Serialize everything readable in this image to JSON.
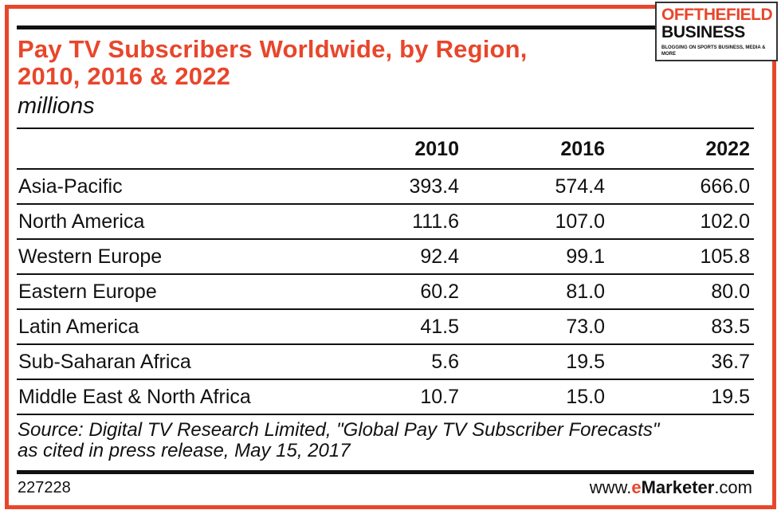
{
  "logo": {
    "line1": "OFFTHEFIELD",
    "line2": "BUSINESS",
    "tagline": "BLOGGING ON SPORTS BUSINESS, MEDIA & MORE"
  },
  "chart_data": {
    "type": "table",
    "title": "Pay TV Subscribers Worldwide, by Region, 2010, 2016 & 2022",
    "title_line1": "Pay TV Subscribers Worldwide, by Region,",
    "title_line2": "2010, 2016 & 2022",
    "subtitle": "millions",
    "columns": [
      "",
      "2010",
      "2016",
      "2022"
    ],
    "rows": [
      [
        "Asia-Pacific",
        "393.4",
        "574.4",
        "666.0"
      ],
      [
        "North America",
        "111.6",
        "107.0",
        "102.0"
      ],
      [
        "Western Europe",
        "92.4",
        "99.1",
        "105.8"
      ],
      [
        "Eastern Europe",
        "60.2",
        "81.0",
        "80.0"
      ],
      [
        "Latin America",
        "41.5",
        "73.0",
        "83.5"
      ],
      [
        "Sub-Saharan Africa",
        "5.6",
        "19.5",
        "36.7"
      ],
      [
        "Middle East & North Africa",
        "10.7",
        "15.0",
        "19.5"
      ]
    ],
    "source_line1": "Source: Digital TV Research Limited, \"Global Pay TV Subscriber Forecasts\"",
    "source_line2": "as cited in press release, May 15, 2017"
  },
  "footer": {
    "chart_id": "227228",
    "brand_prefix": "www.",
    "brand_e": "e",
    "brand_main": "Marketer",
    "brand_suffix": ".com"
  },
  "colors": {
    "accent": "#e8462b",
    "text": "#111111"
  }
}
